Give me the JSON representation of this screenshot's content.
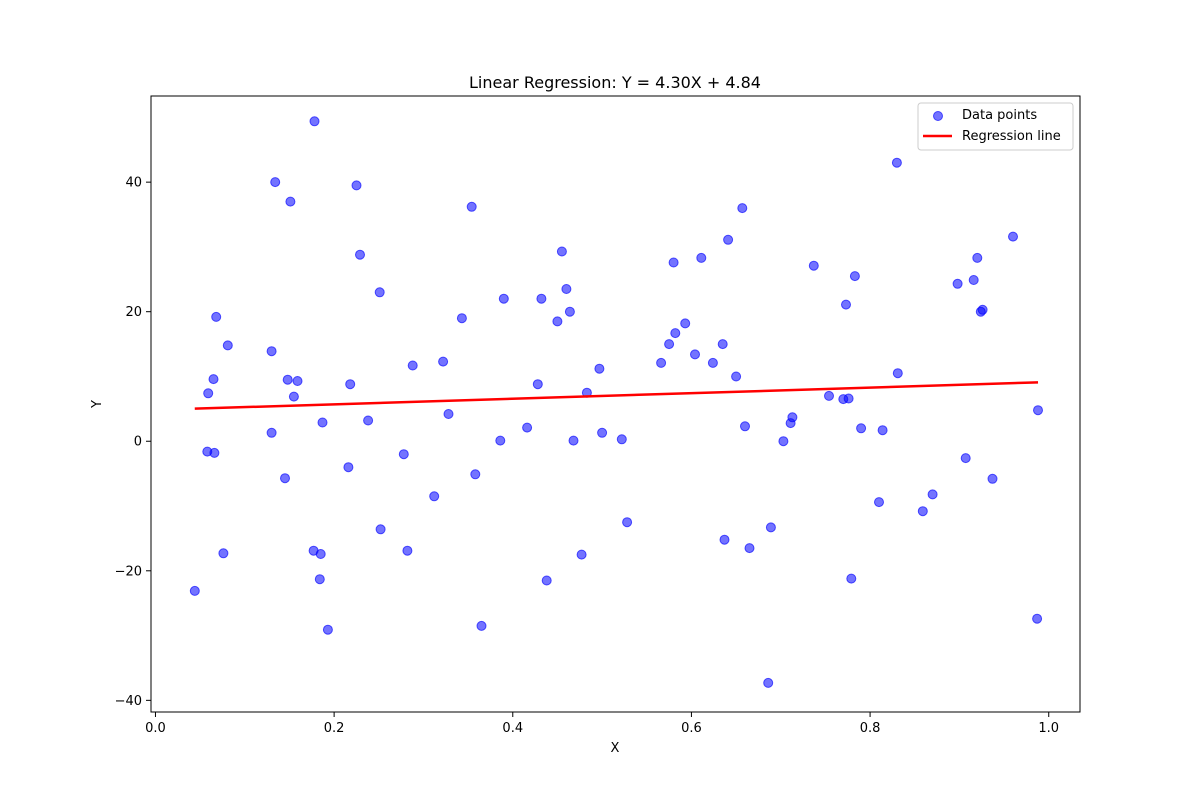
{
  "chart_data": {
    "type": "scatter",
    "title": "Linear Regression: Y = 4.30X + 4.84",
    "xlabel": "X",
    "ylabel": "Y",
    "xlim": [
      -0.005,
      1.035
    ],
    "ylim": [
      -41.8,
      53.3
    ],
    "xticks": [
      0.0,
      0.2,
      0.4,
      0.6,
      0.8,
      1.0
    ],
    "xtick_labels": [
      "0.0",
      "0.2",
      "0.4",
      "0.6",
      "0.8",
      "1.0"
    ],
    "yticks": [
      -40,
      -20,
      0,
      20,
      40
    ],
    "ytick_labels": [
      "−40",
      "−20",
      "0",
      "20",
      "40"
    ],
    "grid": false,
    "legend_placement": "top-right",
    "series": [
      {
        "name": "Data points",
        "kind": "scatter",
        "color": "#0000ff",
        "alpha": 0.55,
        "points": [
          [
            0.044,
            -23.1
          ],
          [
            0.058,
            -1.6
          ],
          [
            0.059,
            7.4
          ],
          [
            0.065,
            9.6
          ],
          [
            0.066,
            -1.8
          ],
          [
            0.068,
            19.2
          ],
          [
            0.076,
            -17.3
          ],
          [
            0.081,
            14.8
          ],
          [
            0.13,
            13.9
          ],
          [
            0.13,
            1.3
          ],
          [
            0.134,
            40.0
          ],
          [
            0.145,
            -5.7
          ],
          [
            0.148,
            9.5
          ],
          [
            0.151,
            37.0
          ],
          [
            0.155,
            6.9
          ],
          [
            0.159,
            9.3
          ],
          [
            0.177,
            -16.9
          ],
          [
            0.178,
            49.4
          ],
          [
            0.184,
            -21.3
          ],
          [
            0.185,
            -17.4
          ],
          [
            0.187,
            2.9
          ],
          [
            0.193,
            -29.1
          ],
          [
            0.216,
            -4.0
          ],
          [
            0.218,
            8.8
          ],
          [
            0.225,
            39.5
          ],
          [
            0.229,
            28.8
          ],
          [
            0.238,
            3.2
          ],
          [
            0.251,
            23.0
          ],
          [
            0.252,
            -13.6
          ],
          [
            0.278,
            -2.0
          ],
          [
            0.282,
            -16.9
          ],
          [
            0.288,
            11.7
          ],
          [
            0.312,
            -8.5
          ],
          [
            0.322,
            12.3
          ],
          [
            0.328,
            4.2
          ],
          [
            0.343,
            19.0
          ],
          [
            0.354,
            36.2
          ],
          [
            0.358,
            -5.1
          ],
          [
            0.365,
            -28.5
          ],
          [
            0.386,
            0.1
          ],
          [
            0.39,
            22.0
          ],
          [
            0.416,
            2.1
          ],
          [
            0.428,
            8.8
          ],
          [
            0.432,
            22.0
          ],
          [
            0.438,
            -21.5
          ],
          [
            0.45,
            18.5
          ],
          [
            0.455,
            29.3
          ],
          [
            0.46,
            23.5
          ],
          [
            0.464,
            20.0
          ],
          [
            0.468,
            0.1
          ],
          [
            0.477,
            -17.5
          ],
          [
            0.483,
            7.5
          ],
          [
            0.497,
            11.2
          ],
          [
            0.5,
            1.3
          ],
          [
            0.522,
            0.3
          ],
          [
            0.528,
            -12.5
          ],
          [
            0.566,
            12.1
          ],
          [
            0.575,
            15.0
          ],
          [
            0.58,
            27.6
          ],
          [
            0.582,
            16.7
          ],
          [
            0.593,
            18.2
          ],
          [
            0.604,
            13.4
          ],
          [
            0.611,
            28.3
          ],
          [
            0.624,
            12.1
          ],
          [
            0.635,
            15.0
          ],
          [
            0.637,
            -15.2
          ],
          [
            0.641,
            31.1
          ],
          [
            0.65,
            10.0
          ],
          [
            0.657,
            36.0
          ],
          [
            0.66,
            2.3
          ],
          [
            0.665,
            -16.5
          ],
          [
            0.686,
            -37.3
          ],
          [
            0.689,
            -13.3
          ],
          [
            0.703,
            0.0
          ],
          [
            0.711,
            2.8
          ],
          [
            0.713,
            3.7
          ],
          [
            0.737,
            27.1
          ],
          [
            0.754,
            7.0
          ],
          [
            0.77,
            6.5
          ],
          [
            0.773,
            21.1
          ],
          [
            0.776,
            6.6
          ],
          [
            0.779,
            -21.2
          ],
          [
            0.783,
            25.5
          ],
          [
            0.79,
            2.0
          ],
          [
            0.81,
            -9.4
          ],
          [
            0.814,
            1.7
          ],
          [
            0.83,
            43.0
          ],
          [
            0.831,
            10.5
          ],
          [
            0.859,
            -10.8
          ],
          [
            0.87,
            -8.2
          ],
          [
            0.898,
            24.3
          ],
          [
            0.907,
            -2.6
          ],
          [
            0.916,
            24.9
          ],
          [
            0.92,
            28.3
          ],
          [
            0.924,
            20.0
          ],
          [
            0.926,
            20.3
          ],
          [
            0.937,
            -5.8
          ],
          [
            0.96,
            31.6
          ],
          [
            0.987,
            -27.4
          ],
          [
            0.988,
            4.8
          ]
        ]
      },
      {
        "name": "Regression line",
        "kind": "line",
        "color": "#ff0000",
        "x": [
          0.044,
          0.988
        ],
        "y": [
          5.03,
          9.09
        ]
      }
    ]
  }
}
